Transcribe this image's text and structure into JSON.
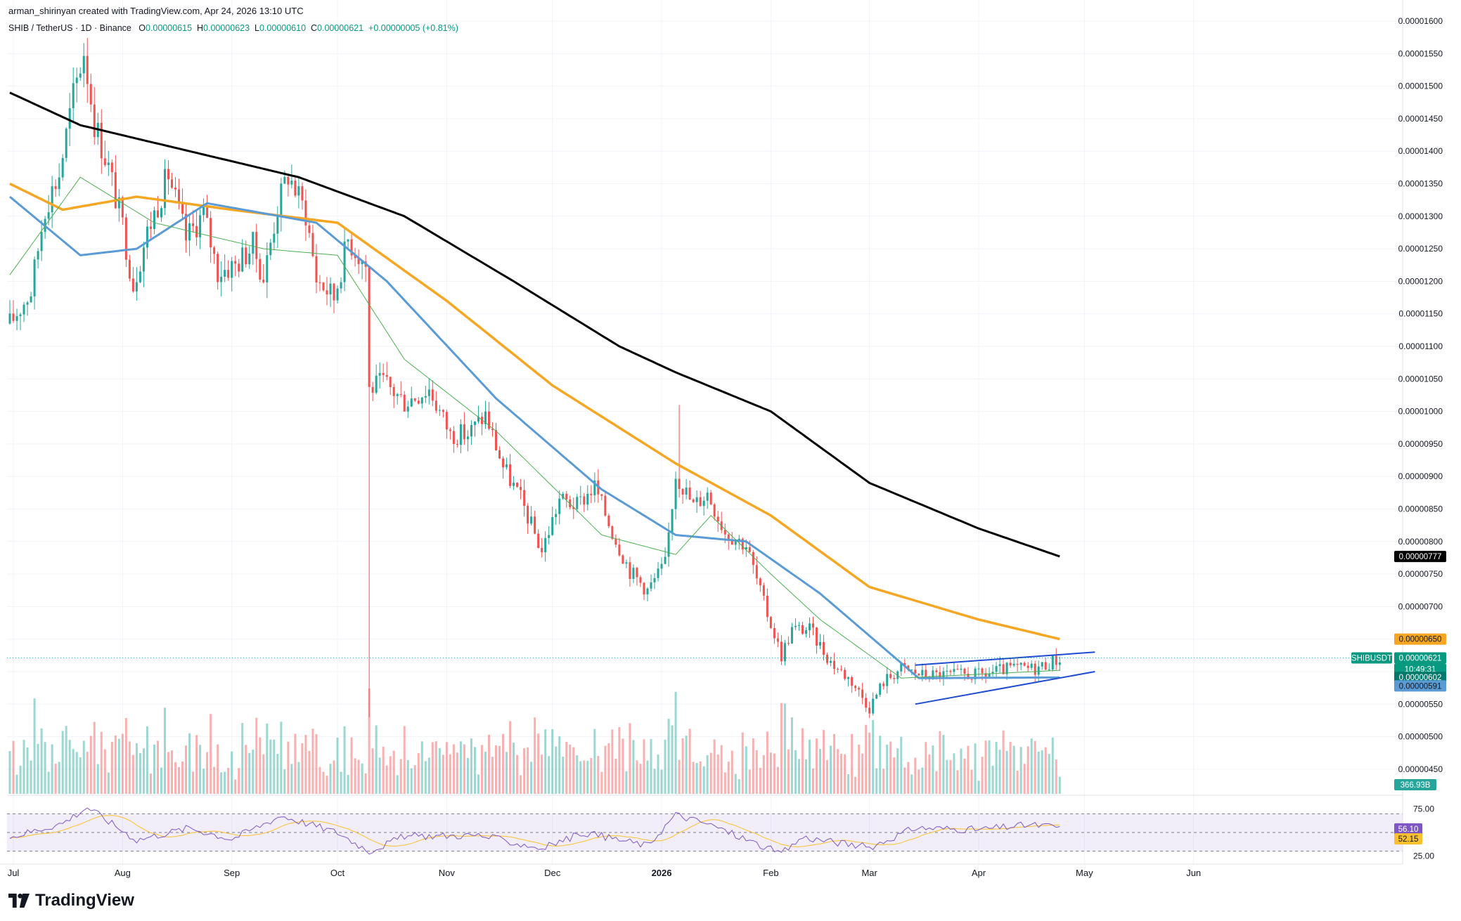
{
  "header": {
    "attribution": "arman_shirinyan created with TradingView.com, Apr 24, 2026 13:10 UTC",
    "symbol": "SHIB / TetherUS · 1D · Binance",
    "open_label": "O",
    "open_value": "0.00000615",
    "high_label": "H",
    "high_value": "0.00000623",
    "low_label": "L",
    "low_value": "0.00000610",
    "close_label": "C",
    "close_value": "0.00000621",
    "change": "+0.00000005 (+0.81%)"
  },
  "brand": {
    "name": "TradingView",
    "logo_icon": "tradingview-logo-icon"
  },
  "colors": {
    "up": "#26a69a",
    "down": "#ef5350",
    "ma200": "#000000",
    "ma100": "#f5a623",
    "ma50": "#5b9bd5",
    "ma20": "#4caf50",
    "channel": "#1e4bd2",
    "rsi": "#7e57c2",
    "rsi_ma": "#fbc02d"
  },
  "chart_data": {
    "type": "candlestick",
    "symbol": "SHIBUSDT",
    "x_axis_labels": [
      "Jul",
      "Aug",
      "Sep",
      "Oct",
      "Nov",
      "Dec",
      "2026",
      "Feb",
      "Mar",
      "Apr",
      "May",
      "Jun"
    ],
    "price_axis_ticks": [
      "0.00001600",
      "0.00001550",
      "0.00001500",
      "0.00001450",
      "0.00001400",
      "0.00001350",
      "0.00001300",
      "0.00001250",
      "0.00001200",
      "0.00001150",
      "0.00001100",
      "0.00001050",
      "0.00001000",
      "0.00000950",
      "0.00000900",
      "0.00000850",
      "0.00000800",
      "0.00000750",
      "0.00000700",
      "0.00000650",
      "0.00000600",
      "0.00000550",
      "0.00000500",
      "0.00000450"
    ],
    "ylim": [
      4.3e-06,
      1.61e-05
    ],
    "price_knots": [
      [
        "2025-06-30",
        1.13e-05,
        1.14e-05
      ],
      [
        "2025-07-06",
        1.18e-05,
        1.19e-05
      ],
      [
        "2025-07-10",
        1.31e-05,
        1.32e-05
      ],
      [
        "2025-07-14",
        1.36e-05,
        1.37e-05
      ],
      [
        "2025-07-18",
        1.48e-05,
        1.49e-05
      ],
      [
        "2025-07-21",
        1.55e-05,
        1.56e-05
      ],
      [
        "2025-07-24",
        1.44e-05,
        1.45e-05
      ],
      [
        "2025-07-28",
        1.37e-05,
        1.38e-05
      ],
      [
        "2025-08-01",
        1.28e-05,
        1.29e-05
      ],
      [
        "2025-08-04",
        1.19e-05,
        1.2e-05
      ],
      [
        "2025-08-08",
        1.27e-05,
        1.28e-05
      ],
      [
        "2025-08-14",
        1.36e-05,
        1.37e-05
      ],
      [
        "2025-08-19",
        1.26e-05,
        1.27e-05
      ],
      [
        "2025-08-24",
        1.3e-05,
        1.31e-05
      ],
      [
        "2025-08-28",
        1.21e-05,
        1.22e-05
      ],
      [
        "2025-09-02",
        1.22e-05,
        1.23e-05
      ],
      [
        "2025-09-07",
        1.25e-05,
        1.26e-05
      ],
      [
        "2025-09-10",
        1.2e-05,
        1.21e-05
      ],
      [
        "2025-09-14",
        1.31e-05,
        1.32e-05
      ],
      [
        "2025-09-17",
        1.36e-05,
        1.37e-05
      ],
      [
        "2025-09-22",
        1.3e-05,
        1.31e-05
      ],
      [
        "2025-09-25",
        1.2e-05,
        1.21e-05
      ],
      [
        "2025-09-30",
        1.17e-05,
        1.18e-05
      ],
      [
        "2025-10-04",
        1.26e-05,
        1.27e-05
      ],
      [
        "2025-10-09",
        1.22e-05,
        1.23e-05
      ],
      [
        "2025-10-10",
        1.03e-05,
        1.04e-05
      ],
      [
        "2025-10-14",
        1.04e-05,
        1.05e-05
      ],
      [
        "2025-10-20",
        1.01e-05,
        1.02e-05
      ],
      [
        "2025-10-27",
        1.03e-05,
        1.04e-05
      ],
      [
        "2025-11-02",
        9.6e-06,
        9.7e-06
      ],
      [
        "2025-11-07",
        9.6e-06,
        9.7e-06
      ],
      [
        "2025-11-12",
        9.9e-06,
        1e-05
      ],
      [
        "2025-11-17",
        9.1e-06,
        9.2e-06
      ],
      [
        "2025-11-22",
        8.6e-06,
        8.7e-06
      ],
      [
        "2025-11-28",
        7.8e-06,
        7.9e-06
      ],
      [
        "2025-12-03",
        8.6e-06,
        8.7e-06
      ],
      [
        "2025-12-08",
        8.5e-06,
        8.6e-06
      ],
      [
        "2025-12-13",
        8.8e-06,
        8.9e-06
      ],
      [
        "2025-12-18",
        8.1e-06,
        8.2e-06
      ],
      [
        "2025-12-23",
        7.5e-06,
        7.6e-06
      ],
      [
        "2025-12-28",
        7.2e-06,
        7.3e-06
      ],
      [
        "2026-01-02",
        7.6e-06,
        7.7e-06
      ],
      [
        "2026-01-05",
        9e-06,
        9.1e-06
      ],
      [
        "2026-01-10",
        8.5e-06,
        8.6e-06
      ],
      [
        "2026-01-14",
        8.7e-06,
        8.8e-06
      ],
      [
        "2026-01-19",
        8.1e-06,
        8.2e-06
      ],
      [
        "2026-01-25",
        7.9e-06,
        8e-06
      ],
      [
        "2026-01-30",
        7e-06,
        7.1e-06
      ],
      [
        "2026-02-04",
        6.2e-06,
        6.3e-06
      ],
      [
        "2026-02-07",
        6.6e-06,
        6.7e-06
      ],
      [
        "2026-02-12",
        6.6e-06,
        6.7e-06
      ],
      [
        "2026-02-18",
        6.1e-06,
        6.2e-06
      ],
      [
        "2026-02-24",
        5.8e-06,
        5.9e-06
      ],
      [
        "2026-03-01",
        5.4e-06,
        5.5e-06
      ],
      [
        "2026-03-05",
        5.8e-06,
        5.9e-06
      ],
      [
        "2026-03-10",
        6e-06,
        6.1e-06
      ],
      [
        "2026-03-16",
        5.9e-06,
        6e-06
      ],
      [
        "2026-03-24",
        5.9e-06,
        6e-06
      ],
      [
        "2026-04-02",
        5.9e-06,
        6e-06
      ],
      [
        "2026-04-10",
        6e-06,
        6.1e-06
      ],
      [
        "2026-04-17",
        6e-06,
        6.1e-06
      ],
      [
        "2026-04-24",
        6.2e-06,
        6.2e-06
      ]
    ],
    "moving_averages": [
      {
        "period": 200,
        "knots": [
          [
            "2025-06-30",
            1.49e-05
          ],
          [
            "2025-07-20",
            1.44e-05
          ],
          [
            "2025-08-20",
            1.4e-05
          ],
          [
            "2025-09-20",
            1.36e-05
          ],
          [
            "2025-10-20",
            1.3e-05
          ],
          [
            "2025-11-20",
            1.2e-05
          ],
          [
            "2025-12-20",
            1.1e-05
          ],
          [
            "2026-01-05",
            1.06e-05
          ],
          [
            "2026-02-01",
            1e-05
          ],
          [
            "2026-03-01",
            8.9e-06
          ],
          [
            "2026-04-01",
            8.2e-06
          ],
          [
            "2026-04-24",
            7.77e-06
          ]
        ]
      },
      {
        "period": 100,
        "knots": [
          [
            "2025-06-30",
            1.35e-05
          ],
          [
            "2025-07-15",
            1.31e-05
          ],
          [
            "2025-08-05",
            1.33e-05
          ],
          [
            "2025-09-01",
            1.31e-05
          ],
          [
            "2025-10-01",
            1.29e-05
          ],
          [
            "2025-11-01",
            1.17e-05
          ],
          [
            "2025-12-01",
            1.04e-05
          ],
          [
            "2026-01-05",
            9.2e-06
          ],
          [
            "2026-02-01",
            8.4e-06
          ],
          [
            "2026-03-01",
            7.3e-06
          ],
          [
            "2026-04-01",
            6.8e-06
          ],
          [
            "2026-04-24",
            6.5e-06
          ]
        ]
      },
      {
        "period": 50,
        "knots": [
          [
            "2025-06-30",
            1.33e-05
          ],
          [
            "2025-07-20",
            1.24e-05
          ],
          [
            "2025-08-05",
            1.25e-05
          ],
          [
            "2025-08-25",
            1.32e-05
          ],
          [
            "2025-09-25",
            1.29e-05
          ],
          [
            "2025-10-15",
            1.2e-05
          ],
          [
            "2025-11-15",
            1.02e-05
          ],
          [
            "2025-12-15",
            8.8e-06
          ],
          [
            "2026-01-05",
            8.1e-06
          ],
          [
            "2026-01-25",
            8e-06
          ],
          [
            "2026-02-15",
            7.2e-06
          ],
          [
            "2026-03-15",
            5.9e-06
          ],
          [
            "2026-04-24",
            5.91e-06
          ]
        ]
      },
      {
        "period": 20,
        "knots": [
          [
            "2025-06-30",
            1.21e-05
          ],
          [
            "2025-07-20",
            1.36e-05
          ],
          [
            "2025-08-10",
            1.29e-05
          ],
          [
            "2025-09-10",
            1.25e-05
          ],
          [
            "2025-10-01",
            1.24e-05
          ],
          [
            "2025-10-20",
            1.08e-05
          ],
          [
            "2025-11-15",
            9.7e-06
          ],
          [
            "2025-12-15",
            8.1e-06
          ],
          [
            "2026-01-05",
            7.8e-06
          ],
          [
            "2026-01-15",
            8.4e-06
          ],
          [
            "2026-02-01",
            7.5e-06
          ],
          [
            "2026-02-15",
            6.8e-06
          ],
          [
            "2026-03-10",
            5.9e-06
          ],
          [
            "2026-04-24",
            6.02e-06
          ]
        ]
      }
    ],
    "channel": {
      "upper": [
        [
          "2026-03-14",
          6.1e-06
        ],
        [
          "2026-05-04",
          6.3e-06
        ]
      ],
      "lower": [
        [
          "2026-03-14",
          5.5e-06
        ],
        [
          "2026-05-04",
          6e-06
        ]
      ]
    },
    "price_labels": [
      {
        "text": "0.00000777",
        "series": "MA200"
      },
      {
        "text": "0.00000650",
        "series": "MA100"
      },
      {
        "text": "SHIBUSDT",
        "series": "symbol"
      },
      {
        "text": "0.00000621",
        "series": "last price"
      },
      {
        "text": "10:49:31",
        "series": "countdown"
      },
      {
        "text": "0.00000602",
        "series": "MA20"
      },
      {
        "text": "0.00000591",
        "series": "MA50"
      },
      {
        "text": "366.93B",
        "series": "volume"
      }
    ],
    "rsi": {
      "ticks": [
        "75.00",
        "25.00"
      ],
      "ylim": [
        20,
        80
      ],
      "bands": [
        70,
        50,
        30
      ],
      "current": "56.10",
      "ma_current": "52.15",
      "knots": [
        [
          "2025-06-30",
          45
        ],
        [
          "2025-07-15",
          60
        ],
        [
          "2025-07-22",
          77
        ],
        [
          "2025-08-05",
          42
        ],
        [
          "2025-08-20",
          55
        ],
        [
          "2025-09-01",
          43
        ],
        [
          "2025-09-15",
          68
        ],
        [
          "2025-10-01",
          50
        ],
        [
          "2025-10-10",
          30
        ],
        [
          "2025-10-20",
          46
        ],
        [
          "2025-11-10",
          47
        ],
        [
          "2025-11-28",
          33
        ],
        [
          "2025-12-10",
          50
        ],
        [
          "2025-12-28",
          36
        ],
        [
          "2026-01-05",
          69
        ],
        [
          "2026-01-15",
          58
        ],
        [
          "2026-02-04",
          27
        ],
        [
          "2026-02-10",
          45
        ],
        [
          "2026-03-01",
          34
        ],
        [
          "2026-03-14",
          55
        ],
        [
          "2026-04-01",
          53
        ],
        [
          "2026-04-15",
          58
        ],
        [
          "2026-04-24",
          56
        ]
      ]
    }
  }
}
